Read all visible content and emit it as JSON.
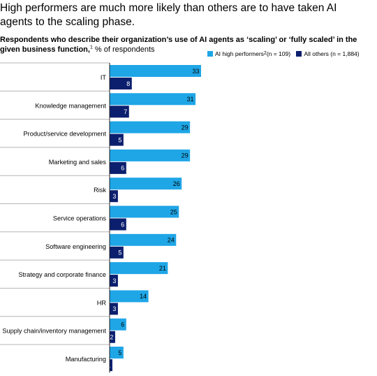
{
  "title": "High performers are much more likely than others are to have taken AI agents to the scaling phase.",
  "subtitle_bold": "Respondents who describe their organization’s use of AI agents as ‘scaling’ or ‘fully scaled’ in the given business function,",
  "subtitle_footnote": "1",
  "subtitle_rest": " % of respondents",
  "legend": [
    {
      "label": "AI high performers",
      "footnote": "2",
      "suffix": " (n = 109)",
      "color": "#1fa6e6"
    },
    {
      "label": "All others (n = 1,884)",
      "footnote": "",
      "suffix": "",
      "color": "#0b1f6e"
    }
  ],
  "chart_data": {
    "type": "bar",
    "orientation": "horizontal",
    "categories": [
      "IT",
      "Knowledge management",
      "Product/service development",
      "Marketing and sales",
      "Risk",
      "Service operations",
      "Software engineering",
      "Strategy and corporate finance",
      "HR",
      "Supply chain/inventory management",
      "Manufacturing"
    ],
    "series": [
      {
        "name": "AI high performers² (n = 109)",
        "values": [
          33,
          31,
          29,
          29,
          26,
          25,
          24,
          21,
          14,
          6,
          5
        ],
        "color": "#1fa6e6"
      },
      {
        "name": "All others (n = 1,884)",
        "values": [
          8,
          7,
          5,
          6,
          3,
          6,
          5,
          3,
          3,
          2,
          1
        ],
        "color": "#0b1f6e"
      }
    ],
    "data_labels": true,
    "grid": false
  }
}
